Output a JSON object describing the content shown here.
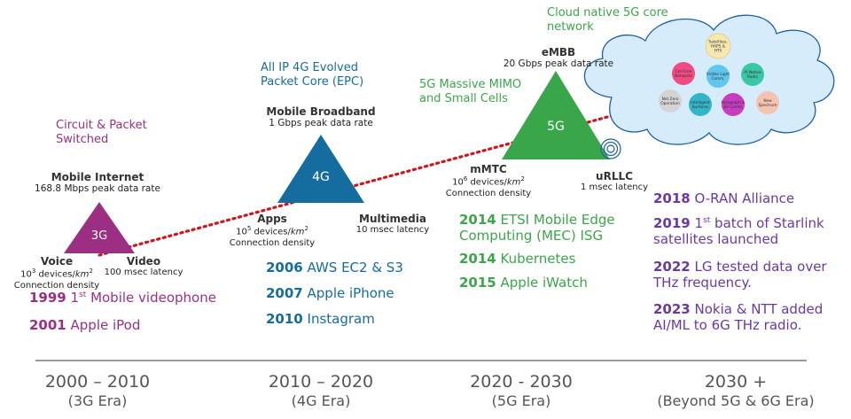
{
  "eras": [
    {
      "years": "2000 – 2010",
      "name": "(3G Era)"
    },
    {
      "years": "2010 – 2020",
      "name": "(4G Era)"
    },
    {
      "years": "2020 - 2030",
      "name": "(5G Era)"
    },
    {
      "years": "2030 +",
      "name": "(Beyond 5G & 6G Era)"
    }
  ],
  "g3": {
    "label": "3G",
    "note_line1": "Circuit & Packet",
    "note_line2": "Switched",
    "top_title": "Mobile Internet",
    "top_sub": "168.8 Mbps peak data rate",
    "left_title": "Voice",
    "left_sub1_base": "10",
    "left_sub1_exp": "3",
    "left_sub1_rest": " devices/",
    "left_sub1_unit": "km",
    "left_sub1_unit_exp": "2",
    "left_sub2": "Connection density",
    "right_title": "Video",
    "right_sub": "100 msec latency",
    "color": "#9c2f83"
  },
  "g4": {
    "label": "4G",
    "note_line1": "All IP 4G Evolved",
    "note_line2": "Packet Core (EPC)",
    "top_title": "Mobile Broadband",
    "top_sub": "1 Gbps peak data rate",
    "left_title": "Apps",
    "left_sub1_base": "10",
    "left_sub1_exp": "5",
    "left_sub1_rest": " devices/",
    "left_sub1_unit": "km",
    "left_sub1_unit_exp": "2",
    "left_sub2": "Connection density",
    "right_title": "Multimedia",
    "right_sub": "10 msec latency",
    "color": "#146c9f"
  },
  "g5": {
    "label": "5G",
    "note_line1": "5G Massive MIMO",
    "note_line2": "and Small Cells",
    "cloud_note_line1": "Cloud native 5G core",
    "cloud_note_line2": "network",
    "top_title": "eMBB",
    "top_sub": "20 Gbps peak data rate",
    "left_title": "mMTC",
    "left_sub1_base": "10",
    "left_sub1_exp": "6",
    "left_sub1_rest": " devices/",
    "left_sub1_unit": "km",
    "left_sub1_unit_exp": "2",
    "left_sub2": "Connection density",
    "right_title": "uRLLC",
    "right_sub": "1 msec latency",
    "color": "#3aa64a"
  },
  "cloud_bubbles": [
    {
      "label1": "Satellites,",
      "label2": "HAPS &",
      "label3": "HTS"
    },
    {
      "label1": "Cell Free",
      "label2": "Networks",
      "label3": ""
    },
    {
      "label1": "Visible Light",
      "label2": "Comm.",
      "label3": ""
    },
    {
      "label1": "AI Native",
      "label2": "Radio",
      "label3": ""
    },
    {
      "label1": "Net Zero",
      "label2": "Operation",
      "label3": ""
    },
    {
      "label1": "Intelligent",
      "label2": "Surfaces",
      "label3": ""
    },
    {
      "label1": "Holograph &",
      "label2": "3D Comm.",
      "label3": ""
    },
    {
      "label1": "New",
      "label2": "Spectrum",
      "label3": ""
    }
  ],
  "events_3g": [
    {
      "year": "1999",
      "pre": "1",
      "sup": "st",
      "text": " Mobile videophone"
    },
    {
      "year": "2001",
      "pre": "",
      "sup": "",
      "text": " Apple iPod"
    }
  ],
  "events_4g": [
    {
      "year": "2006",
      "text": " AWS EC2 & S3"
    },
    {
      "year": "2007",
      "text": " Apple iPhone"
    },
    {
      "year": "2010",
      "text": " Instagram"
    }
  ],
  "events_5g": [
    {
      "year": "2014",
      "text": " ETSI Mobile Edge",
      "text2": "Computing (MEC) ISG"
    },
    {
      "year": "2014",
      "text": " Kubernetes",
      "text2": ""
    },
    {
      "year": "2015",
      "text": " Apple iWatch",
      "text2": ""
    }
  ],
  "events_6g": [
    {
      "year": "2018",
      "pre": "",
      "sup": "",
      "text": " O-RAN Alliance",
      "text2": ""
    },
    {
      "year": "2019",
      "pre": " 1",
      "sup": "st",
      "text": " batch of Starlink",
      "text2": "satellites launched"
    },
    {
      "year": "2022",
      "pre": "",
      "sup": "",
      "text": " LG tested data over",
      "text2": "THz  frequency."
    },
    {
      "year": "2023",
      "pre": "",
      "sup": "",
      "text": " Nokia & NTT added",
      "text2": "AI/ML to 6G THz radio."
    }
  ]
}
